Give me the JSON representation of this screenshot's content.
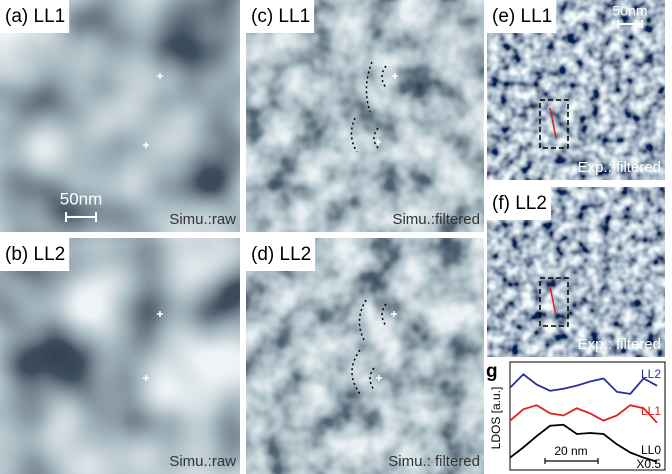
{
  "panels": {
    "a": {
      "label": "(a) LL1",
      "caption": "Simu.:raw",
      "scale": "50nm"
    },
    "b": {
      "label": "(b) LL2",
      "caption": "Simu.:raw"
    },
    "c": {
      "label": "(c) LL1",
      "caption": "Simu.:filtered"
    },
    "d": {
      "label": "(d) LL2",
      "caption": "Simu.: filtered"
    },
    "e": {
      "label": "(e) LL1",
      "caption": "Exp.: filtered",
      "scale": "50nm"
    },
    "f": {
      "label": "(f) LL2",
      "caption": "Exp.: filtered"
    }
  },
  "chart_data": {
    "type": "line",
    "label": "g",
    "ylabel": "LDOS [a.u.]",
    "scale": "20 nm",
    "annotation": "X0.5",
    "x": [
      0,
      5,
      10,
      15,
      20,
      25,
      30,
      35,
      40,
      45,
      50,
      55
    ],
    "xlim": [
      0,
      58
    ],
    "ylim": [
      0,
      10.5
    ],
    "series": [
      {
        "name": "LL2",
        "color": "#2a2f9a",
        "values": [
          8.0,
          9.3,
          8.3,
          7.7,
          7.9,
          8.2,
          8.6,
          8.9,
          7.6,
          7.4,
          8.9,
          8.2
        ]
      },
      {
        "name": "LL1",
        "color": "#e0201c",
        "values": [
          4.8,
          5.9,
          6.3,
          5.5,
          5.3,
          6.0,
          5.5,
          4.8,
          5.3,
          6.3,
          6.0,
          4.6
        ]
      },
      {
        "name": "LL0",
        "color": "#000000",
        "values": [
          1.2,
          2.2,
          3.3,
          4.3,
          4.4,
          3.5,
          3.6,
          3.5,
          2.5,
          1.7,
          1.2,
          0.8
        ]
      }
    ]
  }
}
